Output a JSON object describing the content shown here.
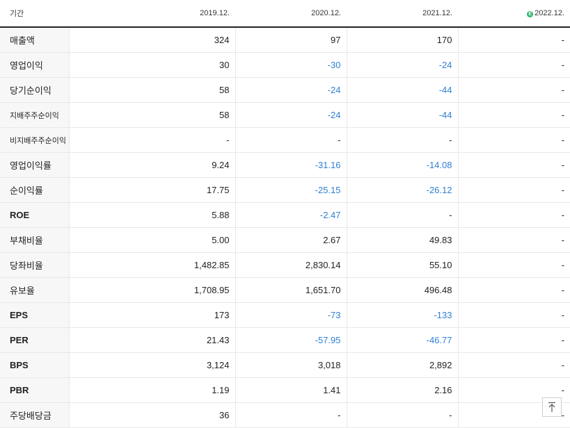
{
  "header": {
    "period_label": "기간",
    "periods": [
      "2019.12.",
      "2020.12.",
      "2021.12.",
      "2022.12."
    ],
    "estimate_icon": "estimate-icon"
  },
  "rows": [
    {
      "label": "매출액",
      "values": [
        "324",
        "97",
        "170",
        "-"
      ]
    },
    {
      "label": "영업이익",
      "values": [
        "30",
        "-30",
        "-24",
        "-"
      ]
    },
    {
      "label": "당기순이익",
      "values": [
        "58",
        "-24",
        "-44",
        "-"
      ]
    },
    {
      "label": "지배주주순이익",
      "values": [
        "58",
        "-24",
        "-44",
        "-"
      ]
    },
    {
      "label": "비지배주주순이익",
      "values": [
        "-",
        "-",
        "-",
        "-"
      ]
    },
    {
      "label": "영업이익률",
      "values": [
        "9.24",
        "-31.16",
        "-14.08",
        "-"
      ]
    },
    {
      "label": "순이익률",
      "values": [
        "17.75",
        "-25.15",
        "-26.12",
        "-"
      ]
    },
    {
      "label": "ROE",
      "values": [
        "5.88",
        "-2.47",
        "-",
        "-"
      ]
    },
    {
      "label": "부채비율",
      "values": [
        "5.00",
        "2.67",
        "49.83",
        "-"
      ]
    },
    {
      "label": "당좌비율",
      "values": [
        "1,482.85",
        "2,830.14",
        "55.10",
        "-"
      ]
    },
    {
      "label": "유보율",
      "values": [
        "1,708.95",
        "1,651.70",
        "496.48",
        "-"
      ]
    },
    {
      "label": "EPS",
      "values": [
        "173",
        "-73",
        "-133",
        "-"
      ]
    },
    {
      "label": "PER",
      "values": [
        "21.43",
        "-57.95",
        "-46.77",
        "-"
      ]
    },
    {
      "label": "BPS",
      "values": [
        "3,124",
        "3,018",
        "2,892",
        "-"
      ]
    },
    {
      "label": "PBR",
      "values": [
        "1.19",
        "1.41",
        "2.16",
        "-"
      ]
    },
    {
      "label": "주당배당금",
      "values": [
        "36",
        "-",
        "-",
        "-"
      ]
    }
  ],
  "colors": {
    "negative": "#2f7fd4",
    "label_bg": "#f7f7f7",
    "estimate": "#2fb36a"
  },
  "scroll_top_button": {
    "icon": "arrow-up-to-top-icon"
  }
}
